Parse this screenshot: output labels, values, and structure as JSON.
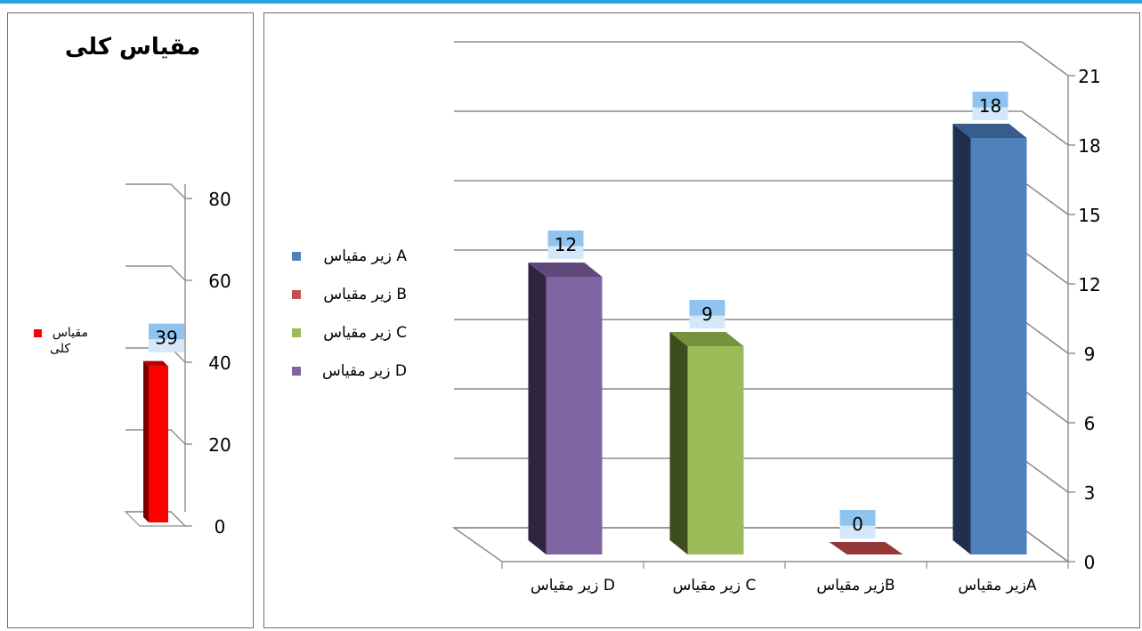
{
  "colors": {
    "top_border": "#29a3e0",
    "grid": "#8c8c8c",
    "label_box": "#8fc4f0",
    "label_box_light": "#dcecfb"
  },
  "chart_data": [
    {
      "type": "bar",
      "title": "مقیاس کلی",
      "categories": [
        ""
      ],
      "series": [
        {
          "name": "مقیاس کلی",
          "values": [
            39
          ],
          "color": "#ff0000",
          "side": "#7a0000",
          "top": "#b30000"
        }
      ],
      "yticks": [
        "0",
        "20",
        "40",
        "60",
        "80"
      ],
      "ylim": [
        0,
        80
      ],
      "grid": true,
      "legend": "left"
    },
    {
      "type": "bar",
      "title": "",
      "categories": [
        "زیر مقیاسA",
        "زیر مقیاسB",
        "زیر مقیاس C",
        "زیر مقیاس D"
      ],
      "values": [
        18,
        0,
        9,
        12
      ],
      "bar_colors": [
        {
          "front": "#4f81bd",
          "side": "#1f2f4d",
          "top": "#385d8a"
        },
        {
          "front": "#c0504d",
          "side": "#6b1f1e",
          "top": "#953735"
        },
        {
          "front": "#9bbb59",
          "side": "#3d4d1f",
          "top": "#76923c"
        },
        {
          "front": "#8064a2",
          "side": "#2f2541",
          "top": "#5f497a"
        }
      ],
      "yticks": [
        "0",
        "3",
        "6",
        "9",
        "12",
        "15",
        "18",
        "21"
      ],
      "ylim": [
        0,
        21
      ],
      "grid": true,
      "legend": "left",
      "legend_entries": [
        {
          "label": "زیر مقیاس A",
          "color": "#4f81bd"
        },
        {
          "label": "زیر مقیاس B",
          "color": "#c0504d"
        },
        {
          "label": "زیر مقیاس C",
          "color": "#9bbb59"
        },
        {
          "label": "زیر مقیاس D",
          "color": "#8064a2"
        }
      ]
    }
  ]
}
